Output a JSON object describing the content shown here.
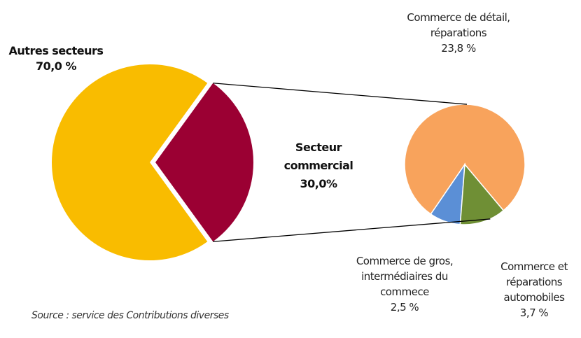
{
  "chart_data": {
    "type": "pie",
    "categories": [
      "Autres secteurs",
      "Secteur commercial"
    ],
    "values": [
      70.0,
      30.0
    ],
    "value_labels": [
      "70,0 %",
      "30,0%"
    ],
    "colors": [
      "#f9bc00",
      "#9b0033"
    ],
    "breakdown": {
      "categories": [
        "Commerce de détail, réparations",
        "Commerce de gros, intermédiaires du commece",
        "Commerce et réparations automobiles"
      ],
      "values": [
        23.8,
        2.5,
        3.7
      ],
      "value_labels": [
        "23,8 %",
        "2,5 %",
        "3,7 %"
      ],
      "colors": [
        "#f8a35c",
        "#5b8fd6",
        "#6f8f35"
      ]
    },
    "source": "Source : service des Contributions diverses"
  }
}
